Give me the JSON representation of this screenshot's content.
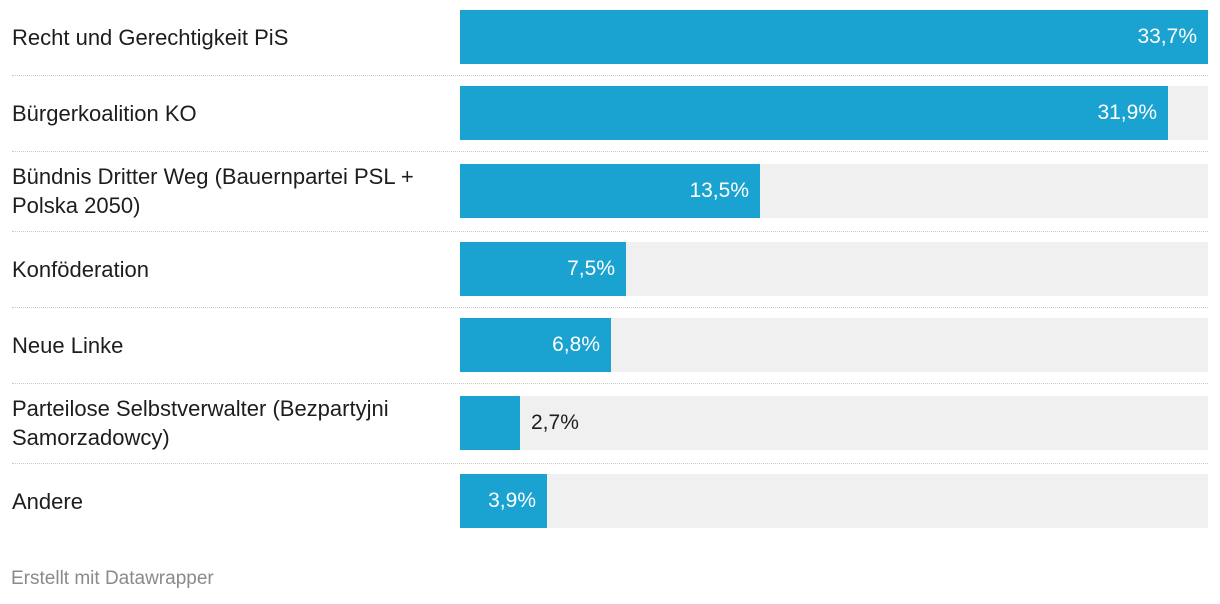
{
  "chart_data": {
    "type": "bar",
    "orientation": "horizontal",
    "categories": [
      "Recht und Gerechtigkeit PiS",
      "Bürgerkoalition KO",
      "Bündnis Dritter Weg (Bauernpartei PSL + Polska 2050)",
      "Konföderation",
      "Neue Linke",
      "Parteilose Selbstverwalter (Bezpartyjni Samorzadowcy)",
      "Andere"
    ],
    "values": [
      33.7,
      31.9,
      13.5,
      7.5,
      6.8,
      2.7,
      3.9
    ],
    "value_labels": [
      "33,7%",
      "31,9%",
      "13,5%",
      "7,5%",
      "6,8%",
      "2,7%",
      "3,9%"
    ],
    "xlim": [
      0,
      33.7
    ],
    "unit": "%",
    "color": "#1aa2d0",
    "track_color": "#f0f0f0"
  },
  "footer": {
    "credit": "Erstellt mit Datawrapper"
  }
}
